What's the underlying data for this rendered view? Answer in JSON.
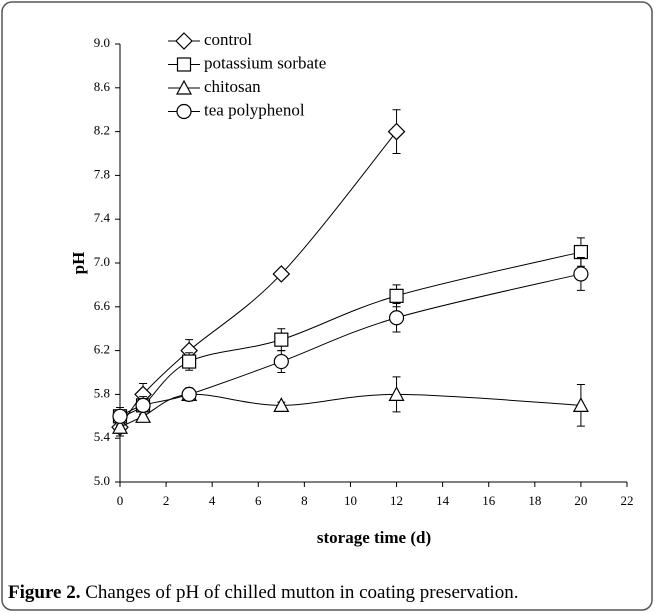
{
  "chart_data": {
    "type": "line",
    "xlabel": "storage time (d)",
    "ylabel": "pH",
    "caption_label": "Figure 2.",
    "caption_text": "Changes of pH of chilled mutton in coating preservation.",
    "xlim": [
      0,
      22
    ],
    "xticks": [
      0,
      2,
      4,
      6,
      8,
      10,
      12,
      14,
      16,
      18,
      20,
      22
    ],
    "ylim": [
      5,
      9
    ],
    "yticks": [
      {
        "value": 5,
        "label": "5.0"
      },
      5.4,
      5.8,
      6.2,
      6.6,
      {
        "value": 7,
        "label": "7.0"
      },
      7.4,
      7.8,
      8.2,
      8.6,
      {
        "value": 9,
        "label": "9.0"
      }
    ],
    "grid": false,
    "legend": "upper left",
    "series": [
      {
        "name": "control",
        "color": "#000000",
        "marker": "diamond",
        "x": [
          0,
          1,
          3,
          7,
          12
        ],
        "values": [
          5.5,
          5.8,
          6.2,
          6.9,
          8.2
        ],
        "errors": [
          0.08,
          0.1,
          0.1,
          0.03,
          0.2
        ]
      },
      {
        "name": "potassium sorbate",
        "color": "#000000",
        "marker": "square",
        "x": [
          0,
          1,
          3,
          7,
          12,
          20
        ],
        "values": [
          5.6,
          5.7,
          6.1,
          6.3,
          6.7,
          7.1
        ],
        "errors": [
          0.08,
          0.08,
          0.08,
          0.1,
          0.1,
          0.13
        ]
      },
      {
        "name": "chitosan",
        "color": "#000000",
        "marker": "triangle",
        "x": [
          0,
          1,
          3,
          7,
          12,
          20
        ],
        "values": [
          5.5,
          5.6,
          5.8,
          5.7,
          5.8,
          5.7
        ],
        "errors": [
          0.05,
          0.05,
          0.06,
          0.03,
          0.16,
          0.19
        ]
      },
      {
        "name": "tea polyphenol",
        "color": "#000000",
        "marker": "circle",
        "x": [
          0,
          1,
          3,
          7,
          12,
          20
        ],
        "values": [
          5.6,
          5.7,
          5.8,
          6.1,
          6.5,
          6.9
        ],
        "errors": [
          0.05,
          0.05,
          0.05,
          0.1,
          0.13,
          0.15
        ]
      }
    ]
  }
}
